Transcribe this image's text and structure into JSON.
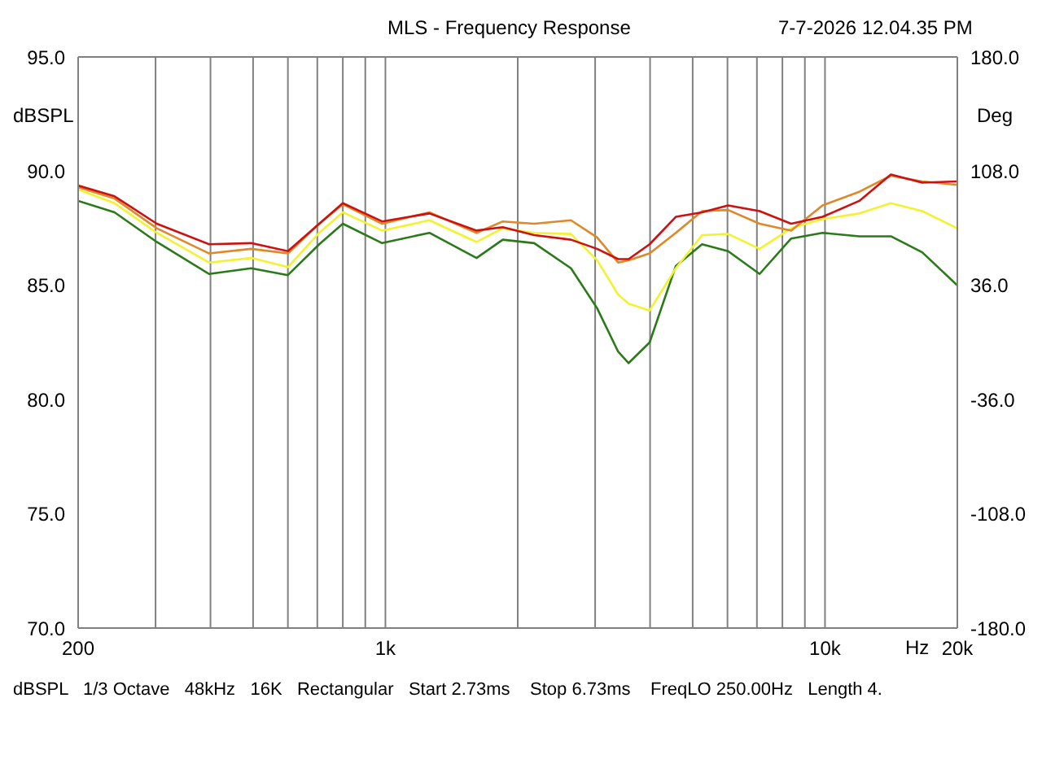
{
  "chart_data": {
    "type": "line",
    "title": "MLS - Frequency Response",
    "xlabel": "Hz",
    "ylabel": "dBSPL",
    "y2label": "Deg",
    "annotations": [
      "7-7-2026 12.04.35 PM",
      "dBSPL   1/3 Octave   48kHz   16K   Rectangular   Start 2.73ms    Stop 6.73ms    FreqLO 250.00Hz   Length 4."
    ],
    "log": "x",
    "grid": true,
    "x": [
      200,
      242,
      302,
      397,
      495,
      600,
      707,
      800,
      983,
      1259,
      1612,
      1849,
      2180,
      2643,
      3031,
      3384,
      3575,
      3990,
      4577,
      5252,
      6020,
      7100,
      8374,
      9870,
      11970,
      14120,
      16640,
      20000
    ],
    "xlim": [
      200,
      20000
    ],
    "xticks": [
      200,
      {
        "value": 300,
        "label": null
      },
      {
        "value": 400,
        "label": null
      },
      {
        "value": 500,
        "label": null
      },
      {
        "value": 600,
        "label": null
      },
      {
        "value": 700,
        "label": null
      },
      {
        "value": 800,
        "label": null
      },
      {
        "value": 900,
        "label": null
      },
      {
        "value": 1000,
        "label": "1k"
      },
      {
        "value": 2000,
        "label": null
      },
      {
        "value": 3000,
        "label": null
      },
      {
        "value": 4000,
        "label": null
      },
      {
        "value": 5000,
        "label": null
      },
      {
        "value": 6000,
        "label": null
      },
      {
        "value": 7000,
        "label": null
      },
      {
        "value": 8000,
        "label": null
      },
      {
        "value": 9000,
        "label": null
      },
      {
        "value": 10000,
        "label": "10k"
      },
      {
        "value": 20000,
        "label": "20k"
      }
    ],
    "ylim": [
      70,
      95
    ],
    "yticks": [
      {
        "value": 70,
        "label": "70.0"
      },
      {
        "value": 75,
        "label": "75.0"
      },
      {
        "value": 80,
        "label": "80.0"
      },
      {
        "value": 85,
        "label": "85.0"
      },
      {
        "value": 90,
        "label": "90.0"
      },
      {
        "value": 95,
        "label": "95.0"
      }
    ],
    "y2lim": [
      -180,
      180
    ],
    "y2ticks": [
      {
        "value": -180,
        "label": "-180.0"
      },
      {
        "value": -108,
        "label": "-108.0"
      },
      {
        "value": -36,
        "label": "-36.0"
      },
      {
        "value": 36,
        "label": "36.0"
      },
      {
        "value": 108,
        "label": "108.0"
      },
      {
        "value": 180,
        "label": "180.0"
      }
    ],
    "series": [
      {
        "color": "#2a7a1a",
        "values": [
          88.7,
          88.2,
          86.9,
          85.5,
          85.75,
          85.45,
          86.8,
          87.7,
          86.85,
          87.3,
          86.2,
          87.0,
          86.85,
          85.75,
          84.0,
          82.1,
          81.6,
          82.5,
          85.85,
          86.8,
          86.5,
          85.5,
          87.05,
          87.3,
          87.15,
          87.15,
          86.45,
          85.0
        ]
      },
      {
        "color": "#f2f230",
        "values": [
          89.2,
          88.6,
          87.3,
          86.0,
          86.2,
          85.8,
          87.3,
          88.2,
          87.4,
          87.85,
          86.9,
          87.5,
          87.3,
          87.25,
          86.1,
          84.6,
          84.2,
          83.9,
          85.75,
          87.2,
          87.25,
          86.6,
          87.5,
          87.9,
          88.15,
          88.6,
          88.25,
          87.5
        ]
      },
      {
        "color": "#e08828",
        "values": [
          89.3,
          88.8,
          87.5,
          86.4,
          86.6,
          86.4,
          87.7,
          88.55,
          87.7,
          88.2,
          87.3,
          87.8,
          87.7,
          87.85,
          87.1,
          86.0,
          86.1,
          86.4,
          87.3,
          88.25,
          88.3,
          87.7,
          87.4,
          88.5,
          89.1,
          89.8,
          89.55,
          89.4
        ]
      },
      {
        "color": "#cc1111",
        "values": [
          89.37,
          88.9,
          87.7,
          86.8,
          86.85,
          86.5,
          87.7,
          88.6,
          87.8,
          88.15,
          87.4,
          87.55,
          87.2,
          87.0,
          86.6,
          86.15,
          86.15,
          86.8,
          88.0,
          88.2,
          88.5,
          88.25,
          87.7,
          88.0,
          88.7,
          89.85,
          89.5,
          89.55
        ]
      }
    ]
  }
}
